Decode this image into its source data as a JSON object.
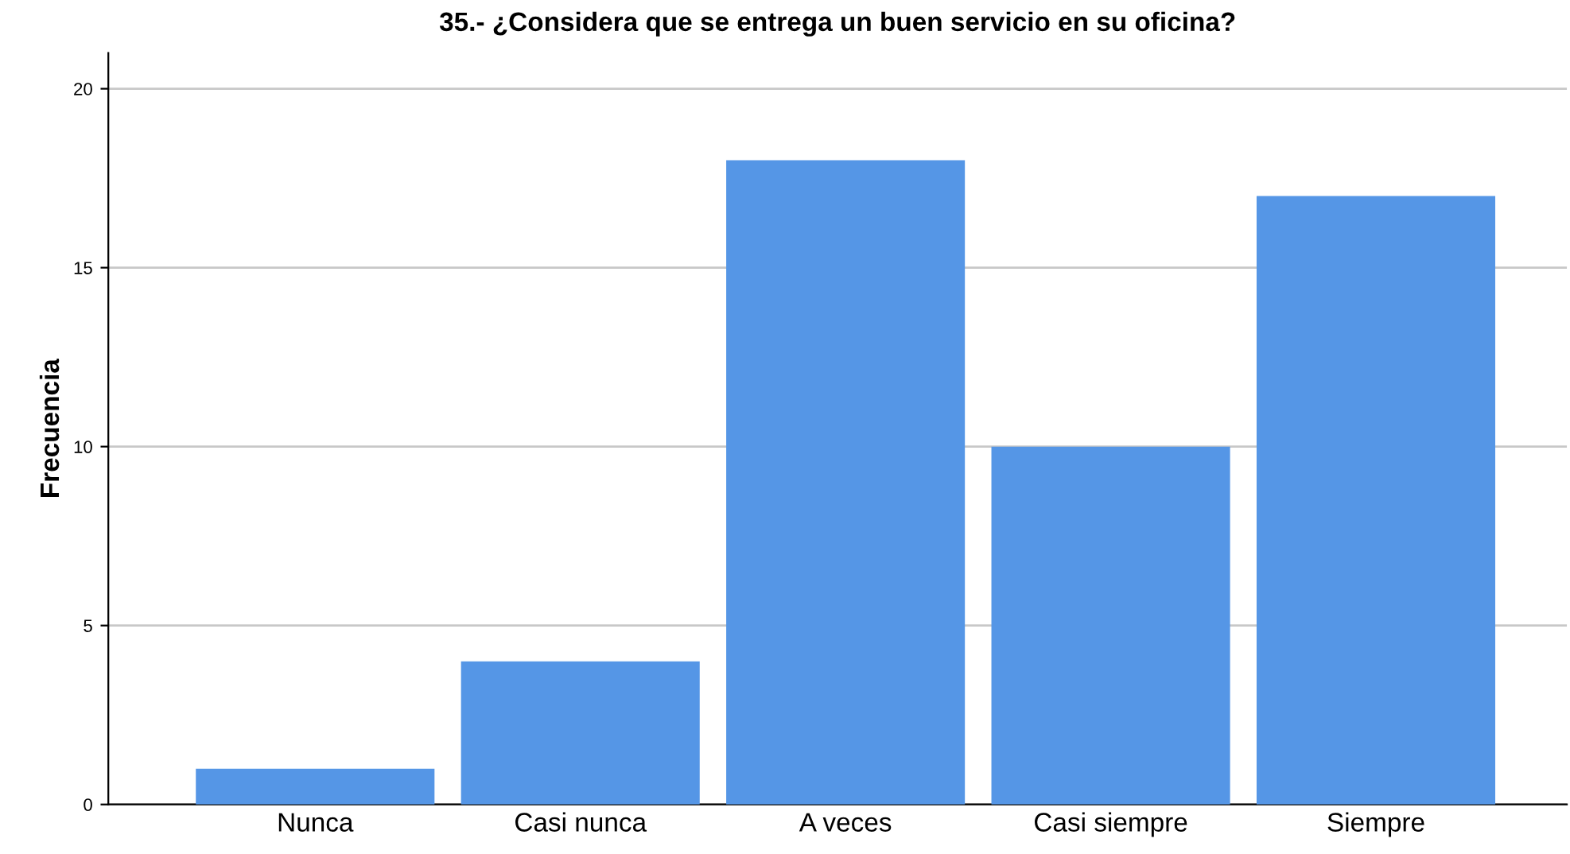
{
  "chart_data": {
    "type": "bar",
    "title": "35.- ¿Considera que se entrega un buen servicio en su oficina?",
    "ylabel": "Frecuencia",
    "categories": [
      "Nunca",
      "Casi nunca",
      "A veces",
      "Casi siempre",
      "Siempre"
    ],
    "values": [
      1,
      4,
      18,
      10,
      17
    ],
    "color": "#5596e6",
    "ylim": [
      0,
      21
    ],
    "yticks": [
      0,
      5,
      10,
      15,
      20
    ],
    "grid": "y",
    "legend": false
  }
}
